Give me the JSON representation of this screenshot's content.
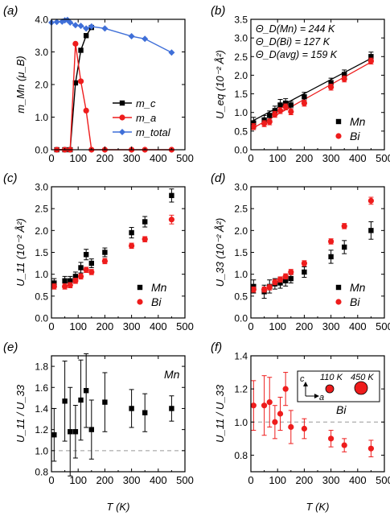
{
  "figure": {
    "x_label": "T (K)",
    "x_ticks": [
      "0",
      "100",
      "200",
      "300",
      "400",
      "500"
    ]
  },
  "colors": {
    "black": "#000000",
    "red": "#ee1c1c",
    "blue": "#3f6fd8",
    "dash": "#999999"
  },
  "chart_data": [
    {
      "panel": "(a)",
      "type": "line",
      "ylabel": "m_Mn (μ_B)",
      "xlim": [
        0,
        500
      ],
      "ylim": [
        0,
        4
      ],
      "yticks": [
        "0.0",
        "1.0",
        "2.0",
        "3.0",
        "4.0"
      ],
      "series": [
        {
          "name": "m_c",
          "color": "#000000",
          "marker": "square",
          "x": [
            20,
            50,
            70,
            90,
            110,
            130,
            150
          ],
          "y": [
            0,
            0,
            0,
            2.05,
            3.05,
            3.5,
            3.75
          ]
        },
        {
          "name": "m_a",
          "color": "#ee1c1c",
          "marker": "circle",
          "x": [
            20,
            50,
            70,
            90,
            110,
            130,
            150,
            200,
            300,
            350,
            450
          ],
          "y": [
            0,
            0,
            0,
            3.25,
            2.1,
            1.2,
            0,
            0,
            0,
            0,
            0
          ]
        },
        {
          "name": "m_total",
          "color": "#3f6fd8",
          "marker": "diamond",
          "x": [
            0,
            20,
            40,
            50,
            60,
            70,
            90,
            110,
            130,
            150,
            200,
            300,
            350,
            450
          ],
          "y": [
            3.9,
            3.92,
            3.93,
            3.97,
            3.98,
            3.9,
            3.82,
            3.8,
            3.72,
            3.78,
            3.72,
            3.48,
            3.4,
            2.98
          ]
        }
      ]
    },
    {
      "panel": "(b)",
      "type": "scatter",
      "ylabel": "U_eq (10⁻² Å²)",
      "xlim": [
        0,
        500
      ],
      "ylim": [
        0,
        3.5
      ],
      "yticks": [
        "0.0",
        "0.5",
        "1.0",
        "1.5",
        "2.0",
        "2.5",
        "3.0",
        "3.5"
      ],
      "annotations": [
        "Θ_D(Mn) = 244 K",
        "Θ_D(Bi) = 127 K",
        "Θ_D(avg) = 159 K"
      ],
      "series": [
        {
          "name": "Mn",
          "color": "#000000",
          "marker": "square",
          "x": [
            10,
            50,
            70,
            90,
            110,
            130,
            150,
            200,
            300,
            350,
            450
          ],
          "y": [
            0.72,
            0.8,
            0.92,
            1.05,
            1.2,
            1.25,
            1.2,
            1.42,
            1.8,
            2.02,
            2.5
          ],
          "err": [
            0.15,
            0.12,
            0.12,
            0.12,
            0.15,
            0.12,
            0.1,
            0.12,
            0.12,
            0.12,
            0.12
          ],
          "fit": [
            [
              0,
              0.75
            ],
            [
              450,
              2.45
            ]
          ]
        },
        {
          "name": "Bi",
          "color": "#ee1c1c",
          "marker": "circle",
          "x": [
            10,
            50,
            70,
            90,
            110,
            130,
            150,
            200,
            300,
            350,
            450
          ],
          "y": [
            0.62,
            0.7,
            0.75,
            0.95,
            1.05,
            1.15,
            1.02,
            1.25,
            1.68,
            1.9,
            2.38
          ],
          "err": [
            0.08,
            0.08,
            0.08,
            0.08,
            0.08,
            0.08,
            0.08,
            0.08,
            0.08,
            0.08,
            0.08
          ],
          "fit": [
            [
              0,
              0.55
            ],
            [
              450,
              2.35
            ]
          ]
        }
      ]
    },
    {
      "panel": "(c)",
      "type": "scatter",
      "ylabel": "U_11 (10⁻² Å²)",
      "xlim": [
        0,
        500
      ],
      "ylim": [
        0,
        3.0
      ],
      "yticks": [
        "0.0",
        "0.5",
        "1.0",
        "1.5",
        "2.0",
        "2.5",
        "3.0"
      ],
      "series": [
        {
          "name": "Mn",
          "color": "#000000",
          "marker": "square",
          "x": [
            10,
            50,
            70,
            90,
            110,
            130,
            150,
            200,
            300,
            350,
            450
          ],
          "y": [
            0.8,
            0.85,
            0.85,
            0.95,
            1.15,
            1.45,
            1.25,
            1.5,
            1.95,
            2.2,
            2.8
          ],
          "err": [
            0.1,
            0.1,
            0.1,
            0.1,
            0.12,
            0.12,
            0.1,
            0.1,
            0.12,
            0.12,
            0.15
          ]
        },
        {
          "name": "Bi",
          "color": "#ee1c1c",
          "marker": "circle",
          "x": [
            10,
            50,
            70,
            90,
            110,
            130,
            150,
            200,
            300,
            350,
            450
          ],
          "y": [
            0.72,
            0.72,
            0.75,
            0.85,
            0.95,
            1.1,
            1.05,
            1.3,
            1.65,
            1.8,
            2.25
          ],
          "err": [
            0.06,
            0.06,
            0.06,
            0.06,
            0.06,
            0.06,
            0.06,
            0.06,
            0.06,
            0.06,
            0.1
          ]
        }
      ]
    },
    {
      "panel": "(d)",
      "type": "scatter",
      "ylabel": "U_33 (10⁻² Å²)",
      "xlim": [
        0,
        500
      ],
      "ylim": [
        0,
        3.0
      ],
      "yticks": [
        "0.0",
        "0.5",
        "1.0",
        "1.5",
        "2.0",
        "2.5",
        "3.0"
      ],
      "series": [
        {
          "name": "Mn",
          "color": "#000000",
          "marker": "square",
          "x": [
            10,
            50,
            70,
            90,
            110,
            130,
            150,
            200,
            300,
            350,
            450
          ],
          "y": [
            0.72,
            0.6,
            0.72,
            0.78,
            0.8,
            0.85,
            0.9,
            1.05,
            1.4,
            1.62,
            2.0
          ],
          "err": [
            0.15,
            0.15,
            0.15,
            0.12,
            0.12,
            0.12,
            0.1,
            0.12,
            0.15,
            0.15,
            0.2
          ]
        },
        {
          "name": "Bi",
          "color": "#ee1c1c",
          "marker": "circle",
          "x": [
            10,
            50,
            70,
            90,
            110,
            130,
            150,
            200,
            300,
            350,
            450
          ],
          "y": [
            0.65,
            0.65,
            0.7,
            0.82,
            0.88,
            0.95,
            1.05,
            1.25,
            1.75,
            2.1,
            2.68
          ],
          "err": [
            0.06,
            0.06,
            0.06,
            0.06,
            0.06,
            0.06,
            0.06,
            0.06,
            0.06,
            0.06,
            0.08
          ]
        }
      ]
    },
    {
      "panel": "(e)",
      "type": "scatter",
      "ylabel": "U_11 / U_33",
      "xlim": [
        0,
        500
      ],
      "ylim": [
        0.8,
        1.9
      ],
      "yticks": [
        "0.8",
        "1.0",
        "1.2",
        "1.4",
        "1.6",
        "1.8"
      ],
      "legend": "Mn",
      "reference_line": 1.0,
      "series": [
        {
          "name": "Mn",
          "color": "#000000",
          "marker": "square",
          "x": [
            10,
            50,
            70,
            90,
            110,
            130,
            150,
            200,
            300,
            350,
            450
          ],
          "y": [
            1.15,
            1.47,
            1.18,
            1.18,
            1.48,
            1.57,
            1.2,
            1.46,
            1.4,
            1.36,
            1.4
          ],
          "err": [
            0.25,
            0.38,
            0.42,
            0.25,
            0.38,
            0.35,
            0.28,
            0.28,
            0.18,
            0.18,
            0.12
          ]
        }
      ]
    },
    {
      "panel": "(f)",
      "type": "scatter",
      "ylabel": "U_11 / U_33",
      "xlim": [
        0,
        500
      ],
      "ylim": [
        0.7,
        1.4
      ],
      "yticks": [
        "0.8",
        "1.0",
        "1.2",
        "1.4"
      ],
      "legend": "Bi",
      "reference_line": 1.0,
      "inset": {
        "axes": [
          "c",
          "a"
        ],
        "labels": [
          "110 K",
          "450 K"
        ]
      },
      "series": [
        {
          "name": "Bi",
          "color": "#ee1c1c",
          "marker": "circle",
          "x": [
            10,
            50,
            70,
            90,
            110,
            130,
            150,
            200,
            300,
            350,
            450
          ],
          "y": [
            1.1,
            1.1,
            1.12,
            1.0,
            1.05,
            1.2,
            0.97,
            0.96,
            0.9,
            0.86,
            0.84
          ],
          "err": [
            0.15,
            0.18,
            0.15,
            0.1,
            0.1,
            0.1,
            0.1,
            0.06,
            0.05,
            0.04,
            0.05
          ]
        }
      ]
    }
  ]
}
